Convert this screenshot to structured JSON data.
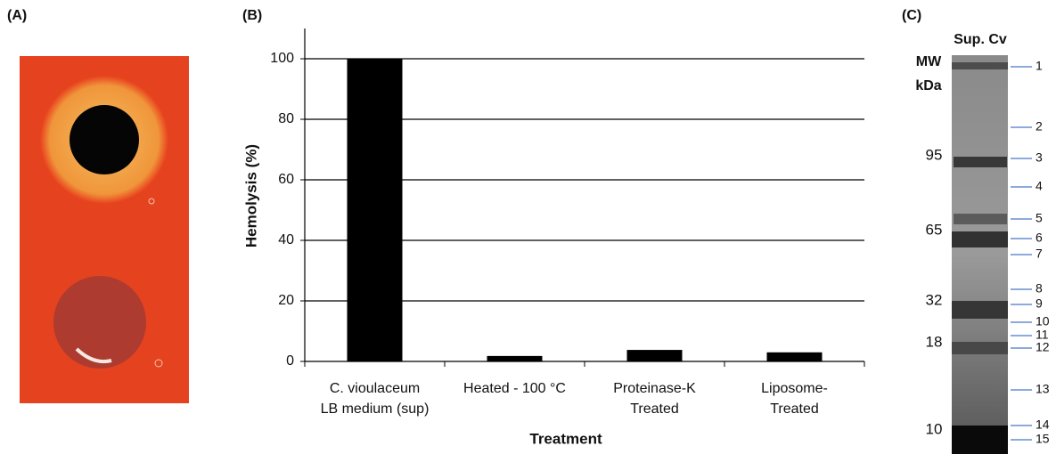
{
  "panels": {
    "a": {
      "label": "(A)"
    },
    "b": {
      "label": "(B)"
    },
    "c": {
      "label": "(C)"
    }
  },
  "chart_data": {
    "type": "bar",
    "y_label": "Hemolysis (%)",
    "x_label": "Treatment",
    "categories": [
      [
        "C. vioulaceum",
        "LB medium (sup)"
      ],
      [
        "Heated - 100 °C"
      ],
      [
        "Proteinase-K",
        "Treated"
      ],
      [
        "Liposome-",
        "Treated"
      ]
    ],
    "values": [
      100,
      1.8,
      3.8,
      3
    ],
    "color": "#000000",
    "ylim": [
      0,
      110
    ],
    "yticks": [
      0,
      20,
      40,
      60,
      80,
      100
    ],
    "grid": true
  },
  "gel": {
    "lane_label": "Sup. Cv",
    "mw_label": [
      "MW",
      "kDa"
    ],
    "mw_markers": [
      "95",
      "65",
      "32",
      "18",
      "10"
    ],
    "band_numbers": [
      "1",
      "2",
      "3",
      "4",
      "5",
      "6",
      "7",
      "8",
      "9",
      "10",
      "11",
      "12",
      "13",
      "14",
      "15"
    ]
  }
}
